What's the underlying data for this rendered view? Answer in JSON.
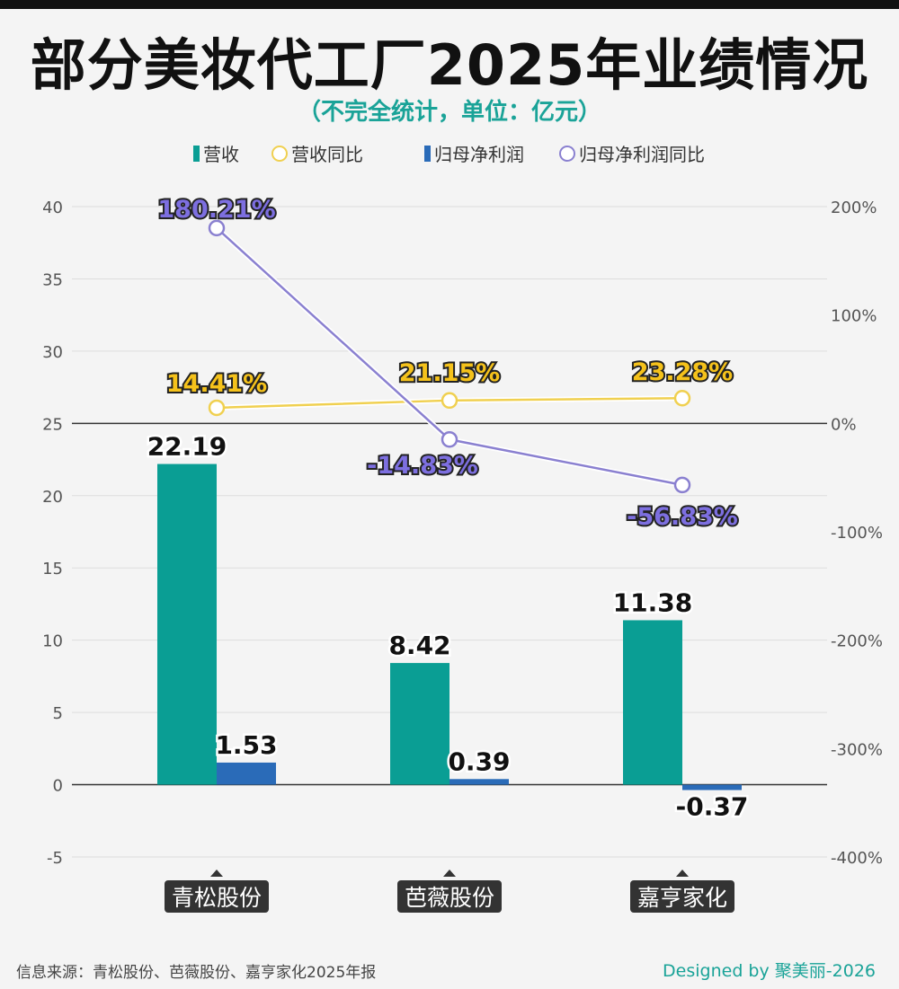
{
  "title": "部分美妆代工厂2025年业绩情况",
  "subtitle": "（不完全统计，单位：亿元）",
  "legend": [
    {
      "label": "营收",
      "color": "#0a9e94",
      "kind": "bar"
    },
    {
      "label": "营收同比",
      "color": "#f0d050",
      "kind": "line"
    },
    {
      "label": "归母净利润",
      "color": "#2a6bb8",
      "kind": "bar"
    },
    {
      "label": "归母净利润同比",
      "color": "#8a80d0",
      "kind": "line"
    }
  ],
  "chart_data": {
    "type": "bar+line",
    "categories": [
      "青松股份",
      "芭薇股份",
      "嘉亨家化"
    ],
    "left_axis": {
      "ylim": [
        -5,
        40
      ],
      "ticks": [
        "-5",
        "0",
        "5",
        "10",
        "15",
        "20",
        "25",
        "30",
        "35",
        "40"
      ]
    },
    "right_axis": {
      "ylim": [
        -400,
        200
      ],
      "unit": "%",
      "ticks": [
        "-400%",
        "-300%",
        "-200%",
        "-100%",
        "0%",
        "100%",
        "200%"
      ]
    },
    "series": [
      {
        "name": "营收",
        "type": "bar",
        "axis": "left",
        "values": [
          22.19,
          8.42,
          11.38
        ],
        "labels": [
          "22.19",
          "8.42",
          "11.38"
        ],
        "color": "#0a9e94"
      },
      {
        "name": "归母净利润",
        "type": "bar",
        "axis": "left",
        "values": [
          1.53,
          0.39,
          -0.37
        ],
        "labels": [
          "1.53",
          "0.39",
          "-0.37"
        ],
        "color": "#2a6bb8"
      },
      {
        "name": "营收同比",
        "type": "line",
        "axis": "right",
        "values": [
          14.41,
          21.15,
          23.28
        ],
        "labels": [
          "14.41%",
          "21.15%",
          "23.28%"
        ],
        "color": "#f0d050",
        "label_color": "#f5c21b"
      },
      {
        "name": "归母净利润同比",
        "type": "line",
        "axis": "right",
        "values": [
          180.21,
          -14.83,
          -56.83
        ],
        "labels": [
          "180.21%",
          "-14.83%",
          "-56.83%"
        ],
        "color": "#8a80d0",
        "label_color": "#7d6fe0"
      }
    ]
  },
  "footer": {
    "source": "信息来源：青松股份、芭薇股份、嘉亨家化2025年报",
    "credit": "Designed by 聚美丽-2026"
  }
}
